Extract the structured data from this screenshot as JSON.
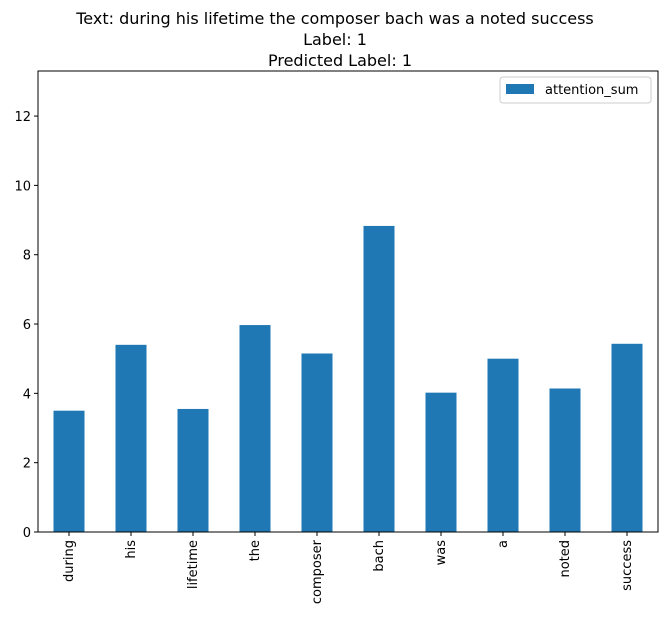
{
  "chart_data": {
    "type": "bar",
    "title_lines": [
      "Text: during his lifetime the composer bach was a noted success",
      "Label: 1",
      "Predicted Label: 1"
    ],
    "categories": [
      "during",
      "his",
      "lifetime",
      "the",
      "composer",
      "bach",
      "was",
      "a",
      "noted",
      "success"
    ],
    "series": [
      {
        "name": "attention_sum",
        "color": "#1f77b4",
        "values": [
          3.5,
          5.4,
          3.55,
          5.97,
          5.15,
          8.83,
          4.02,
          5.0,
          4.14,
          5.43
        ]
      }
    ],
    "yticks": [
      0,
      2,
      4,
      6,
      8,
      10,
      12
    ],
    "ylim": [
      0,
      13.3
    ],
    "xlabel": "",
    "ylabel": "",
    "legend_position": "top-right",
    "grid": false
  }
}
